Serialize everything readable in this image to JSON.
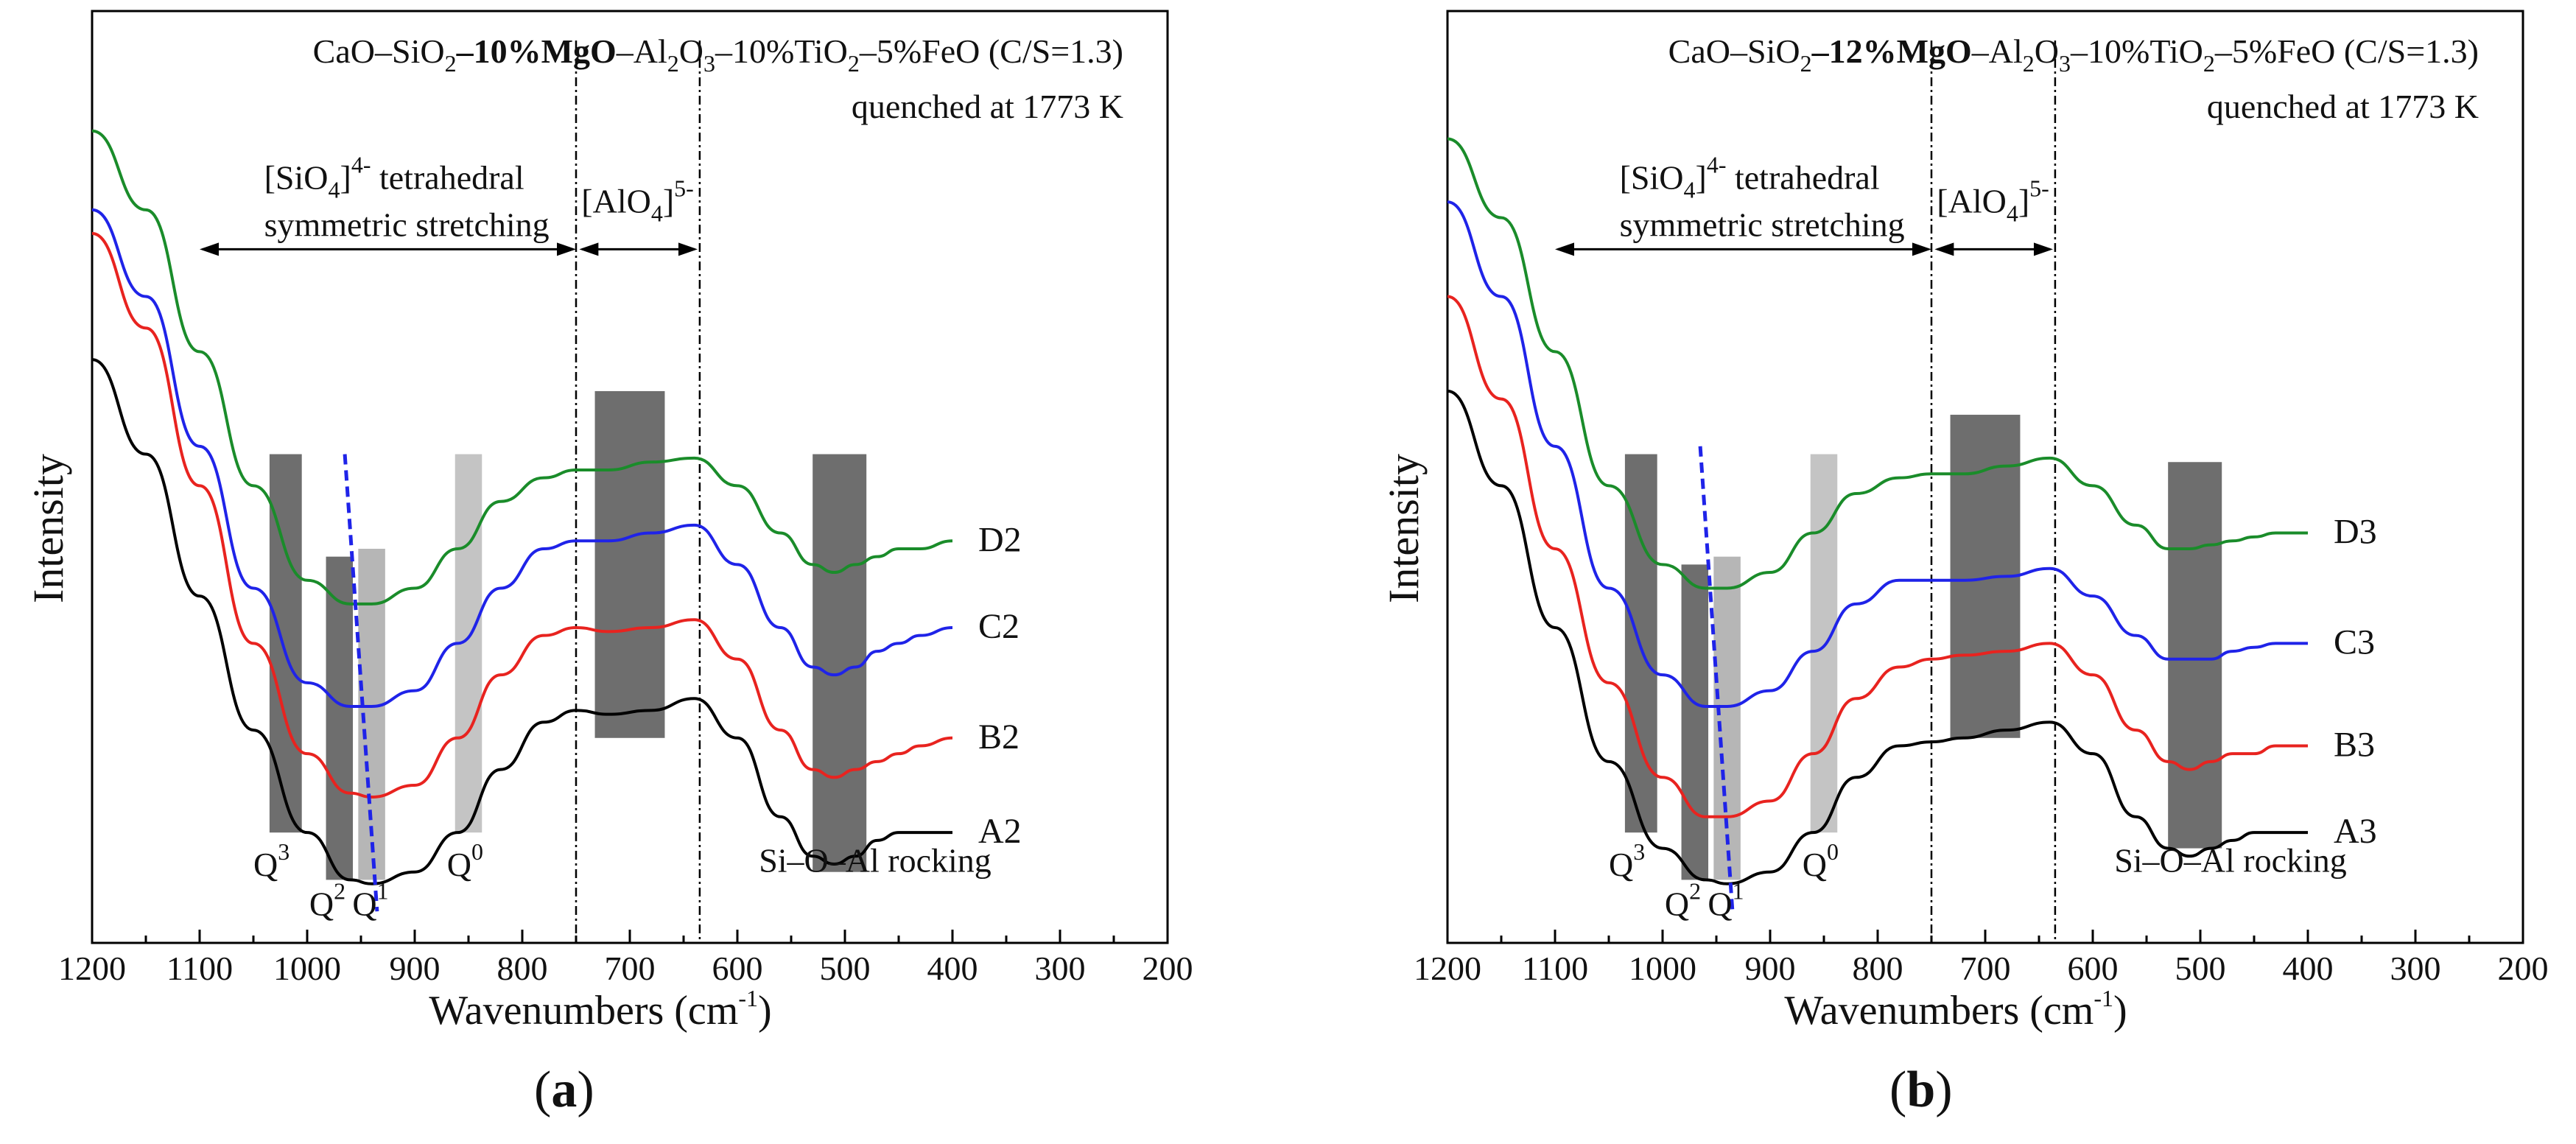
{
  "figure": {
    "panel_a_label": "a",
    "panel_b_label": "b"
  },
  "chart_data": [
    {
      "type": "line",
      "panel": "a",
      "title_prefix": "CaO–SiO",
      "title_sub1": "2",
      "title_dash": "–",
      "title_bold": "10%MgO",
      "title_mid": "–Al",
      "title_sub2": "2",
      "title_o3": "O",
      "title_sub3": "3",
      "title_ti": "–10%TiO",
      "title_sub4": "2",
      "title_end": "–5%FeO (C/S=1.3)",
      "subtitle": "quenched at 1773 K",
      "xlabel_main": "Wavenumbers (cm",
      "xlabel_sup": "-1",
      "xlabel_close": ")",
      "ylabel": "Intensity",
      "xlim": [
        1200,
        200
      ],
      "xticks": [
        "1200",
        "1100",
        "1000",
        "900",
        "800",
        "700",
        "600",
        "500",
        "400",
        "300",
        "200"
      ],
      "region1_label_line1": "[SiO",
      "region1_sub": "4",
      "region1_sup": "4-",
      "region1_label_rest": " tetrahedral",
      "region1_label_line2": "symmetric stretching",
      "region2_label": "[AlO",
      "region2_sub": "4",
      "region2_sup": "5-",
      "region2_close": "]",
      "band_labels": {
        "q3": "Q",
        "q3_sup": "3",
        "q2": "Q",
        "q2_sup": "2",
        "q1": "Q",
        "q1_sup": "1",
        "q0": "Q",
        "q0_sup": "0",
        "rocking": "Si–O–Al rocking"
      },
      "series": [
        {
          "name": "A2",
          "color": "#000000",
          "x": [
            1200,
            1150,
            1100,
            1050,
            1000,
            960,
            940,
            900,
            860,
            820,
            780,
            750,
            720,
            680,
            640,
            600,
            560,
            530,
            510,
            490,
            470,
            450,
            430,
            400
          ],
          "y": [
            0.72,
            0.6,
            0.42,
            0.25,
            0.12,
            0.06,
            0.055,
            0.07,
            0.12,
            0.2,
            0.26,
            0.275,
            0.27,
            0.275,
            0.29,
            0.24,
            0.14,
            0.09,
            0.08,
            0.09,
            0.11,
            0.12,
            0.12,
            0.12
          ]
        },
        {
          "name": "B2",
          "color": "#e8231f",
          "x": [
            1200,
            1150,
            1100,
            1050,
            1000,
            960,
            940,
            900,
            860,
            820,
            780,
            750,
            720,
            680,
            640,
            600,
            560,
            530,
            510,
            490,
            470,
            450,
            430,
            400
          ],
          "y": [
            0.88,
            0.76,
            0.56,
            0.36,
            0.22,
            0.17,
            0.165,
            0.18,
            0.24,
            0.32,
            0.37,
            0.38,
            0.375,
            0.38,
            0.39,
            0.34,
            0.25,
            0.2,
            0.19,
            0.2,
            0.21,
            0.22,
            0.23,
            0.24
          ]
        },
        {
          "name": "C2",
          "color": "#1f23e8",
          "x": [
            1200,
            1150,
            1100,
            1050,
            1000,
            960,
            940,
            900,
            860,
            820,
            780,
            750,
            720,
            680,
            640,
            600,
            560,
            530,
            510,
            490,
            470,
            450,
            430,
            400
          ],
          "y": [
            0.91,
            0.8,
            0.61,
            0.43,
            0.31,
            0.28,
            0.28,
            0.3,
            0.36,
            0.43,
            0.48,
            0.49,
            0.49,
            0.5,
            0.51,
            0.46,
            0.38,
            0.33,
            0.32,
            0.33,
            0.35,
            0.36,
            0.37,
            0.38
          ]
        },
        {
          "name": "D2",
          "color": "#1a8c2a",
          "x": [
            1200,
            1150,
            1100,
            1050,
            1000,
            960,
            940,
            900,
            860,
            820,
            780,
            750,
            720,
            680,
            640,
            600,
            560,
            530,
            510,
            490,
            470,
            450,
            430,
            400
          ],
          "y": [
            1.01,
            0.91,
            0.73,
            0.56,
            0.44,
            0.41,
            0.41,
            0.43,
            0.48,
            0.54,
            0.57,
            0.58,
            0.58,
            0.59,
            0.595,
            0.56,
            0.5,
            0.46,
            0.45,
            0.46,
            0.47,
            0.48,
            0.48,
            0.49
          ]
        }
      ]
    },
    {
      "type": "line",
      "panel": "b",
      "title_prefix": "CaO–SiO",
      "title_sub1": "2",
      "title_dash": "–",
      "title_bold": "12%MgO",
      "title_mid": "–Al",
      "title_sub2": "2",
      "title_o3": "O",
      "title_sub3": "3",
      "title_ti": "–10%TiO",
      "title_sub4": "2",
      "title_end": "–5%FeO (C/S=1.3)",
      "subtitle": "quenched at 1773 K",
      "xlabel_main": "Wavenumbers (cm",
      "xlabel_sup": "-1",
      "xlabel_close": ")",
      "ylabel": "Intensity",
      "xlim": [
        1200,
        200
      ],
      "xticks": [
        "1200",
        "1100",
        "1000",
        "900",
        "800",
        "700",
        "600",
        "500",
        "400",
        "300",
        "200"
      ],
      "region1_label_line1": "[SiO",
      "region1_sub": "4",
      "region1_sup": "4-",
      "region1_label_rest": " tetrahedral",
      "region1_label_line2": "symmetric stretching",
      "region2_label": "[AlO",
      "region2_sub": "4",
      "region2_sup": "5-",
      "region2_close": "]",
      "band_labels": {
        "q3": "Q",
        "q3_sup": "3",
        "q2": "Q",
        "q2_sup": "2",
        "q1": "Q",
        "q1_sup": "1",
        "q0": "Q",
        "q0_sup": "0",
        "rocking": "Si–O–Al rocking"
      },
      "series": [
        {
          "name": "A3",
          "color": "#000000",
          "x": [
            1200,
            1150,
            1100,
            1050,
            1000,
            960,
            940,
            900,
            860,
            820,
            780,
            750,
            720,
            680,
            640,
            600,
            560,
            530,
            510,
            490,
            470,
            450,
            430,
            400
          ],
          "y": [
            0.68,
            0.56,
            0.38,
            0.21,
            0.1,
            0.06,
            0.055,
            0.07,
            0.12,
            0.19,
            0.23,
            0.235,
            0.24,
            0.25,
            0.26,
            0.22,
            0.14,
            0.1,
            0.09,
            0.1,
            0.11,
            0.12,
            0.12,
            0.12
          ]
        },
        {
          "name": "B3",
          "color": "#e8231f",
          "x": [
            1200,
            1150,
            1100,
            1050,
            1000,
            960,
            940,
            900,
            860,
            820,
            780,
            750,
            720,
            680,
            640,
            600,
            560,
            530,
            510,
            490,
            470,
            450,
            430,
            400
          ],
          "y": [
            0.8,
            0.67,
            0.48,
            0.31,
            0.19,
            0.14,
            0.14,
            0.16,
            0.22,
            0.29,
            0.33,
            0.34,
            0.345,
            0.35,
            0.36,
            0.32,
            0.25,
            0.21,
            0.2,
            0.21,
            0.22,
            0.22,
            0.23,
            0.23
          ]
        },
        {
          "name": "C3",
          "color": "#1f23e8",
          "x": [
            1200,
            1150,
            1100,
            1050,
            1000,
            960,
            940,
            900,
            860,
            820,
            780,
            750,
            720,
            680,
            640,
            600,
            560,
            530,
            510,
            490,
            470,
            450,
            430,
            400
          ],
          "y": [
            0.92,
            0.8,
            0.61,
            0.43,
            0.32,
            0.28,
            0.28,
            0.3,
            0.35,
            0.41,
            0.44,
            0.44,
            0.44,
            0.445,
            0.455,
            0.42,
            0.37,
            0.34,
            0.34,
            0.34,
            0.35,
            0.355,
            0.36,
            0.36
          ]
        },
        {
          "name": "D3",
          "color": "#1a8c2a",
          "x": [
            1200,
            1150,
            1100,
            1050,
            1000,
            960,
            940,
            900,
            860,
            820,
            780,
            750,
            720,
            680,
            640,
            600,
            560,
            530,
            510,
            490,
            470,
            450,
            430,
            400
          ],
          "y": [
            1.0,
            0.9,
            0.73,
            0.56,
            0.46,
            0.43,
            0.43,
            0.45,
            0.5,
            0.55,
            0.57,
            0.575,
            0.575,
            0.585,
            0.595,
            0.56,
            0.51,
            0.48,
            0.48,
            0.485,
            0.49,
            0.495,
            0.5,
            0.5
          ]
        }
      ]
    }
  ]
}
